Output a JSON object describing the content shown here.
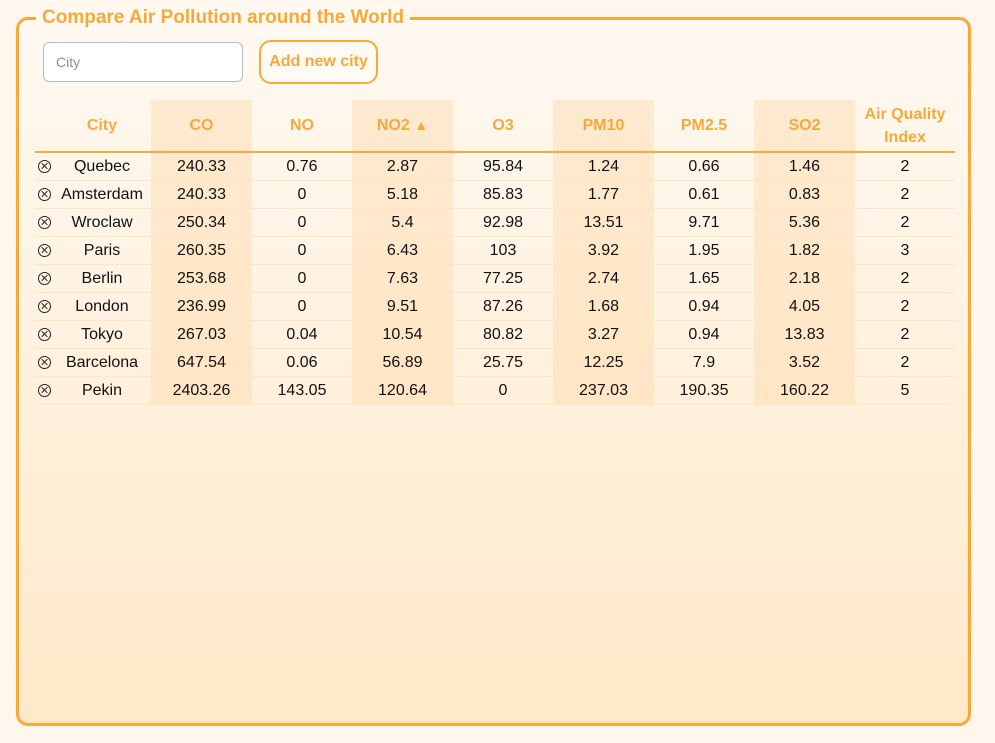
{
  "page": {
    "title": "Compare Air Pollution around the World"
  },
  "form": {
    "city_placeholder": "City",
    "add_button_label": "Add new city"
  },
  "table": {
    "headers": {
      "city": "City",
      "co": "CO",
      "no": "NO",
      "no2": "NO2",
      "no2_sort": "▲",
      "o3": "O3",
      "pm10": "PM10",
      "pm25": "PM2.5",
      "so2": "SO2",
      "aqi_line1": "Air Quality",
      "aqi_line2": "Index"
    },
    "rows": [
      {
        "city": "Quebec",
        "co": "240.33",
        "no": "0.76",
        "no2": "2.87",
        "o3": "95.84",
        "pm10": "1.24",
        "pm25": "0.66",
        "so2": "1.46",
        "aqi": "2"
      },
      {
        "city": "Amsterdam",
        "co": "240.33",
        "no": "0",
        "no2": "5.18",
        "o3": "85.83",
        "pm10": "1.77",
        "pm25": "0.61",
        "so2": "0.83",
        "aqi": "2"
      },
      {
        "city": "Wroclaw",
        "co": "250.34",
        "no": "0",
        "no2": "5.4",
        "o3": "92.98",
        "pm10": "13.51",
        "pm25": "9.71",
        "so2": "5.36",
        "aqi": "2"
      },
      {
        "city": "Paris",
        "co": "260.35",
        "no": "0",
        "no2": "6.43",
        "o3": "103",
        "pm10": "3.92",
        "pm25": "1.95",
        "so2": "1.82",
        "aqi": "3"
      },
      {
        "city": "Berlin",
        "co": "253.68",
        "no": "0",
        "no2": "7.63",
        "o3": "77.25",
        "pm10": "2.74",
        "pm25": "1.65",
        "so2": "2.18",
        "aqi": "2"
      },
      {
        "city": "London",
        "co": "236.99",
        "no": "0",
        "no2": "9.51",
        "o3": "87.26",
        "pm10": "1.68",
        "pm25": "0.94",
        "so2": "4.05",
        "aqi": "2"
      },
      {
        "city": "Tokyo",
        "co": "267.03",
        "no": "0.04",
        "no2": "10.54",
        "o3": "80.82",
        "pm10": "3.27",
        "pm25": "0.94",
        "so2": "13.83",
        "aqi": "2"
      },
      {
        "city": "Barcelona",
        "co": "647.54",
        "no": "0.06",
        "no2": "56.89",
        "o3": "25.75",
        "pm10": "12.25",
        "pm25": "7.9",
        "so2": "3.52",
        "aqi": "2"
      },
      {
        "city": "Pekin",
        "co": "2403.26",
        "no": "143.05",
        "no2": "120.64",
        "o3": "0",
        "pm10": "237.03",
        "pm25": "190.35",
        "so2": "160.22",
        "aqi": "5"
      }
    ]
  },
  "colors": {
    "accent": "#f9a93a",
    "stripe": "#ffe3bd"
  },
  "icons": {
    "remove": "circle-x-icon"
  }
}
